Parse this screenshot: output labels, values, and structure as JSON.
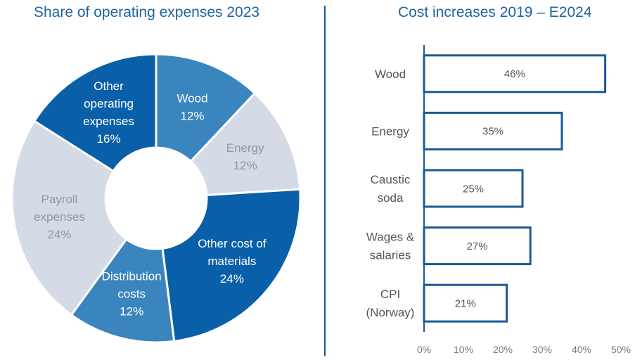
{
  "chart_data": [
    {
      "type": "pie",
      "title": "Share of operating expenses 2023",
      "slices": [
        {
          "label": [
            "Wood"
          ],
          "value": 12,
          "value_label": "12%",
          "color": "#3a85be",
          "text_color": "#ffffff"
        },
        {
          "label": [
            "Energy"
          ],
          "value": 12,
          "value_label": "12%",
          "color": "#d4dbe6",
          "text_color": "#8d97a5"
        },
        {
          "label": [
            "Other cost of",
            "materials"
          ],
          "value": 24,
          "value_label": "24%",
          "color": "#0a60a8",
          "text_color": "#ffffff"
        },
        {
          "label": [
            "Distribution",
            "costs"
          ],
          "value": 12,
          "value_label": "12%",
          "color": "#3a85be",
          "text_color": "#ffffff"
        },
        {
          "label": [
            "Payroll",
            "expenses"
          ],
          "value": 24,
          "value_label": "24%",
          "color": "#d4dbe6",
          "text_color": "#8d97a5"
        },
        {
          "label": [
            "Other",
            "operating",
            "expenses"
          ],
          "value": 16,
          "value_label": "16%",
          "color": "#0a60a8",
          "text_color": "#ffffff"
        }
      ]
    },
    {
      "type": "bar",
      "orientation": "horizontal",
      "title": "Cost increases 2019 – E2024",
      "categories": [
        [
          "Wood"
        ],
        [
          "Energy"
        ],
        [
          "Caustic",
          "soda"
        ],
        [
          "Wages &",
          "salaries"
        ],
        [
          "CPI",
          "(Norway)"
        ]
      ],
      "values": [
        46,
        35,
        25,
        27,
        21
      ],
      "value_labels": [
        "46%",
        "35%",
        "25%",
        "27%",
        "21%"
      ],
      "xlim": [
        0,
        50
      ],
      "xticks": [
        0,
        10,
        20,
        30,
        40,
        50
      ],
      "xtick_labels": [
        "0%",
        "10%",
        "20%",
        "30%",
        "40%",
        "50%"
      ],
      "bar_color": "#ffffff",
      "bar_edge_color": "#1a5a96"
    }
  ]
}
